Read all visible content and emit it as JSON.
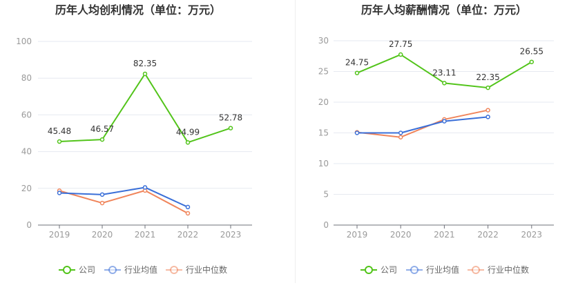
{
  "chart_data": [
    {
      "type": "line",
      "title": "历年人均创利情况（单位：万元）",
      "categories": [
        "2019",
        "2020",
        "2021",
        "2022",
        "2023"
      ],
      "ylim": [
        0,
        100
      ],
      "yticks": [
        0,
        20,
        40,
        60,
        80,
        100
      ],
      "grid": true,
      "legend_position": "bottom",
      "series": [
        {
          "name": "公司",
          "color": "#52c41a",
          "values": [
            45.48,
            46.57,
            82.35,
            44.99,
            52.78
          ],
          "labels": [
            "45.48",
            "46.57",
            "82.35",
            "44.99",
            "52.78"
          ]
        },
        {
          "name": "行业均值",
          "color": "#3a6fd8",
          "values": [
            17.5,
            16.6,
            20.5,
            9.8,
            null
          ]
        },
        {
          "name": "行业中位数",
          "color": "#f0855b",
          "values": [
            18.7,
            12.0,
            18.8,
            6.4,
            null
          ]
        }
      ]
    },
    {
      "type": "line",
      "title": "历年人均薪酬情况（单位：万元）",
      "categories": [
        "2019",
        "2020",
        "2021",
        "2022",
        "2023"
      ],
      "ylim": [
        0,
        30
      ],
      "yticks": [
        0,
        5,
        10,
        15,
        20,
        25,
        30
      ],
      "grid": true,
      "legend_position": "bottom",
      "series": [
        {
          "name": "公司",
          "color": "#52c41a",
          "values": [
            24.75,
            27.75,
            23.11,
            22.35,
            26.55
          ],
          "labels": [
            "24.75",
            "27.75",
            "23.11",
            "22.35",
            "26.55"
          ]
        },
        {
          "name": "行业均值",
          "color": "#3a6fd8",
          "values": [
            15.0,
            15.0,
            16.9,
            17.6,
            null
          ]
        },
        {
          "name": "行业中位数",
          "color": "#f0855b",
          "values": [
            15.1,
            14.3,
            17.2,
            18.7,
            null
          ]
        }
      ]
    }
  ]
}
